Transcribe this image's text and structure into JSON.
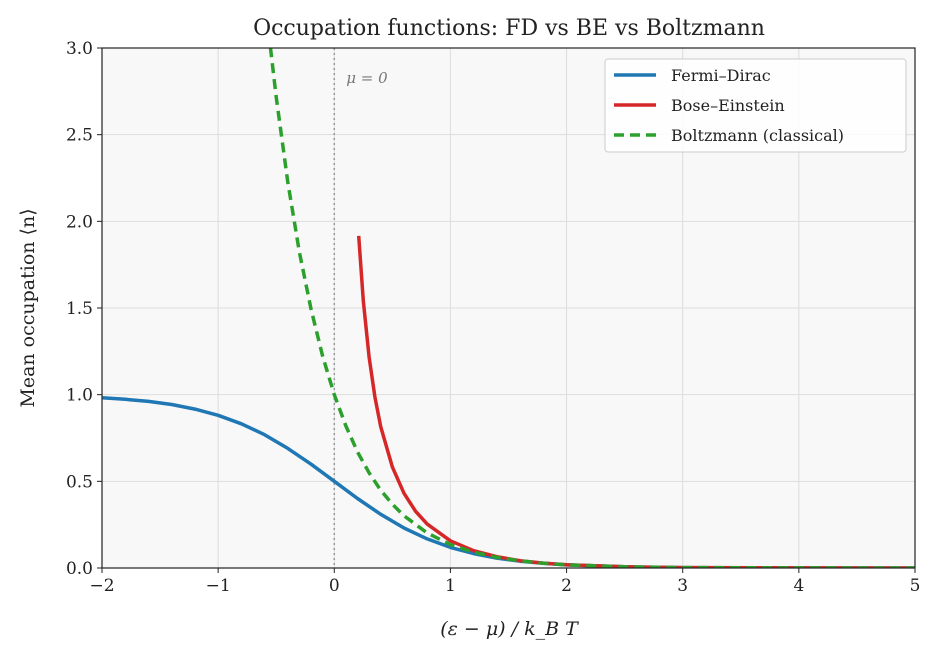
{
  "chart_data": {
    "type": "line",
    "title": "Occupation functions: FD vs BE vs Boltzmann",
    "xlabel": "(ε − μ) / k_B T",
    "ylabel": "Mean occupation ⟨n⟩",
    "xlim": [
      -2,
      5
    ],
    "ylim": [
      0,
      3
    ],
    "xticks": [
      -2,
      -1,
      0,
      1,
      2,
      3,
      4,
      5
    ],
    "xtick_labels": [
      "−2",
      "−1",
      "0",
      "1",
      "2",
      "3",
      "4",
      "5"
    ],
    "yticks": [
      0,
      0.5,
      1,
      1.5,
      2,
      2.5,
      3
    ],
    "ytick_labels": [
      "0.0",
      "0.5",
      "1.0",
      "1.5",
      "2.0",
      "2.5",
      "3.0"
    ],
    "grid": true,
    "legend_position": "top-right",
    "annotation": {
      "text": "μ = 0",
      "x": 0
    },
    "series": [
      {
        "name": "Fermi–Dirac",
        "color": "#1f77b4",
        "style": "solid",
        "x": [
          -2,
          -1.8,
          -1.6,
          -1.4,
          -1.2,
          -1,
          -0.8,
          -0.6,
          -0.4,
          -0.2,
          0,
          0.2,
          0.4,
          0.6,
          0.8,
          1,
          1.2,
          1.4,
          1.6,
          1.8,
          2,
          2.5,
          3,
          3.5,
          4,
          4.5,
          5
        ],
        "y": [
          0.982,
          0.973,
          0.961,
          0.943,
          0.917,
          0.881,
          0.832,
          0.769,
          0.69,
          0.599,
          0.5,
          0.401,
          0.31,
          0.231,
          0.168,
          0.119,
          0.083,
          0.057,
          0.039,
          0.027,
          0.018,
          0.0067,
          0.0025,
          0.0009,
          0.0003,
          0.0001,
          5e-05
        ]
      },
      {
        "name": "Bose–Einstein",
        "color": "#d62728",
        "style": "solid",
        "x": [
          0.21,
          0.25,
          0.3,
          0.35,
          0.4,
          0.5,
          0.6,
          0.7,
          0.8,
          1,
          1.2,
          1.4,
          1.6,
          1.8,
          2,
          2.5,
          3,
          4,
          5
        ],
        "y": [
          1.916,
          1.542,
          1.217,
          0.987,
          0.816,
          0.582,
          0.431,
          0.327,
          0.253,
          0.157,
          0.1,
          0.065,
          0.042,
          0.028,
          0.019,
          0.0068,
          0.0025,
          0.0003,
          5e-05
        ]
      },
      {
        "name": "Boltzmann (classical)",
        "color": "#2ca02c",
        "style": "dashed",
        "x": [
          -0.55,
          -0.5,
          -0.4,
          -0.3,
          -0.2,
          -0.1,
          0,
          0.1,
          0.2,
          0.3,
          0.4,
          0.5,
          0.6,
          0.8,
          1,
          1.2,
          1.4,
          1.6,
          1.8,
          2,
          2.5,
          3,
          4,
          5
        ],
        "y": [
          3.004,
          2.718,
          2.226,
          1.822,
          1.492,
          1.221,
          1,
          0.819,
          0.67,
          0.549,
          0.449,
          0.368,
          0.301,
          0.202,
          0.135,
          0.091,
          0.061,
          0.041,
          0.027,
          0.018,
          0.0067,
          0.0025,
          0.0003,
          5e-05
        ]
      }
    ]
  }
}
